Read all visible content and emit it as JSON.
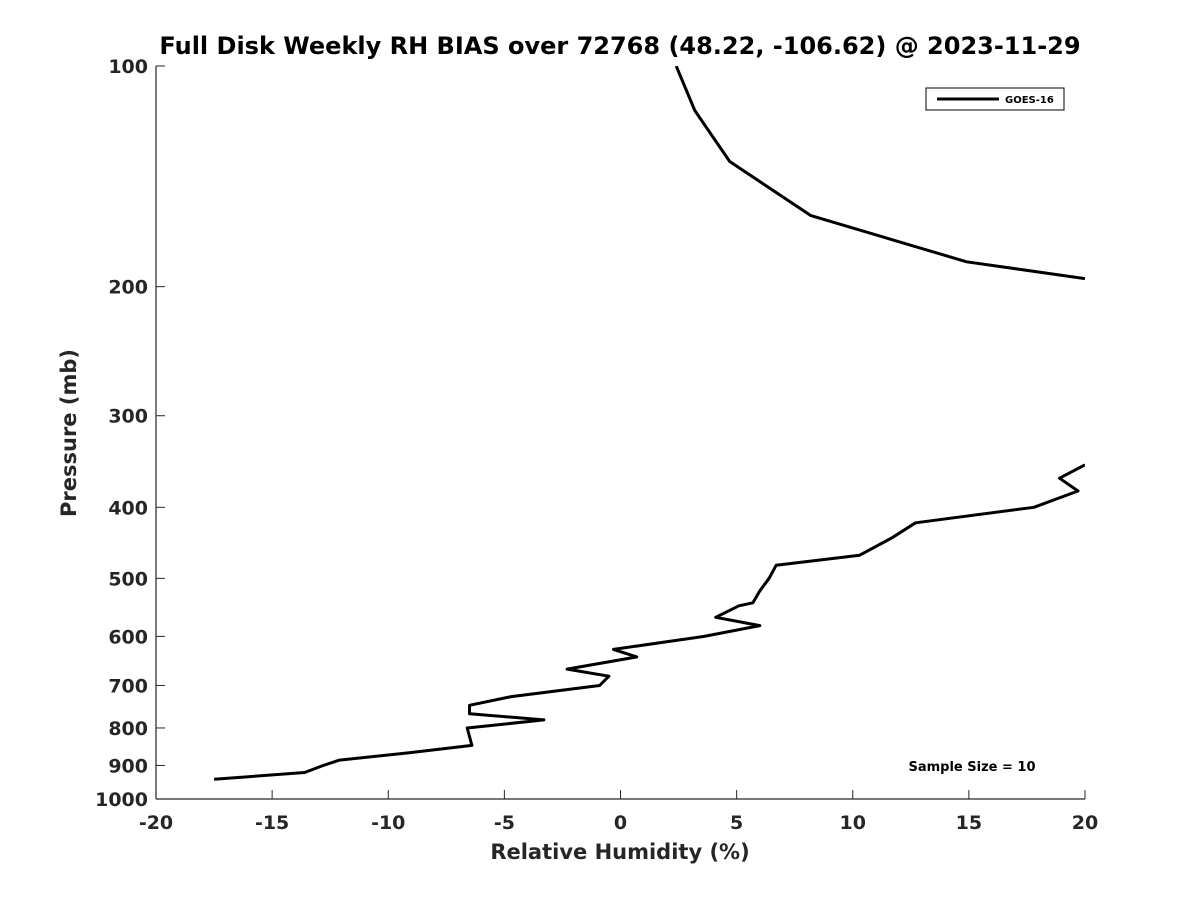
{
  "chart_data": {
    "type": "line",
    "title": "Full Disk Weekly RH BIAS over 72768 (48.22, -106.62) @ 2023-11-29",
    "xlabel": "Relative Humidity (%)",
    "ylabel": "Pressure (mb)",
    "xlim": [
      -20,
      20
    ],
    "ylim": [
      100,
      1000
    ],
    "y_scale": "log",
    "y_reversed": true,
    "grid": false,
    "legend_position": "top-right",
    "x_ticks": [
      "-20",
      "-15",
      "-10",
      "-5",
      "0",
      "5",
      "10",
      "15",
      "20"
    ],
    "y_ticks": [
      "100",
      "200",
      "300",
      "400",
      "500",
      "600",
      "700",
      "800",
      "900",
      "1000"
    ],
    "series": [
      {
        "name": "GOES-16",
        "color": "#000000",
        "segments": [
          [
            [
              2.4,
              100
            ],
            [
              3.2,
              115
            ],
            [
              4.7,
              135
            ],
            [
              8.2,
              160
            ],
            [
              14.9,
              185
            ],
            [
              20.0,
              195
            ]
          ],
          [
            [
              20.0,
              350
            ],
            [
              18.9,
              365
            ],
            [
              19.7,
              380
            ],
            [
              17.8,
              400
            ],
            [
              12.7,
              420
            ],
            [
              11.7,
              440
            ],
            [
              10.3,
              465
            ],
            [
              6.7,
              480
            ],
            [
              6.4,
              500
            ],
            [
              6.0,
              520
            ],
            [
              5.7,
              540
            ],
            [
              5.1,
              545
            ],
            [
              4.1,
              565
            ],
            [
              6.0,
              580
            ],
            [
              3.6,
              600
            ],
            [
              -0.3,
              625
            ],
            [
              0.7,
              640
            ],
            [
              -2.3,
              665
            ],
            [
              -0.5,
              680
            ],
            [
              -0.9,
              700
            ],
            [
              -4.7,
              725
            ],
            [
              -6.5,
              745
            ],
            [
              -6.5,
              765
            ],
            [
              -3.3,
              780
            ],
            [
              -6.6,
              800
            ],
            [
              -6.4,
              845
            ],
            [
              -9.1,
              865
            ],
            [
              -12.1,
              885
            ],
            [
              -12.8,
              900
            ],
            [
              -13.6,
              920
            ],
            [
              -17.5,
              940
            ]
          ]
        ]
      }
    ],
    "annotations": [
      {
        "text": "Sample Size = 10",
        "position": "bottom-right"
      }
    ]
  }
}
